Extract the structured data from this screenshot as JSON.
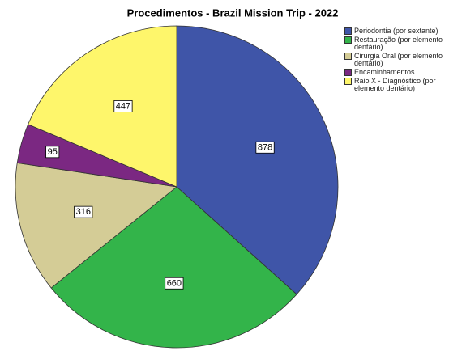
{
  "chart_data": {
    "type": "pie",
    "title": "Procedimentos -  Brazil Mission Trip - 2022",
    "categories": [
      "Periodontia (por sextante)",
      "Restauração (por elemento dentário)",
      "Cirurgia Oral (por elemento dentário)",
      "Encaminhamentos",
      "Raio X - Diagnóstico (por elemento dentário)"
    ],
    "values": [
      878,
      660,
      316,
      95,
      447
    ],
    "colors": [
      "#3f55a8",
      "#33b44a",
      "#d4cc96",
      "#7b2882",
      "#fef66b"
    ]
  }
}
